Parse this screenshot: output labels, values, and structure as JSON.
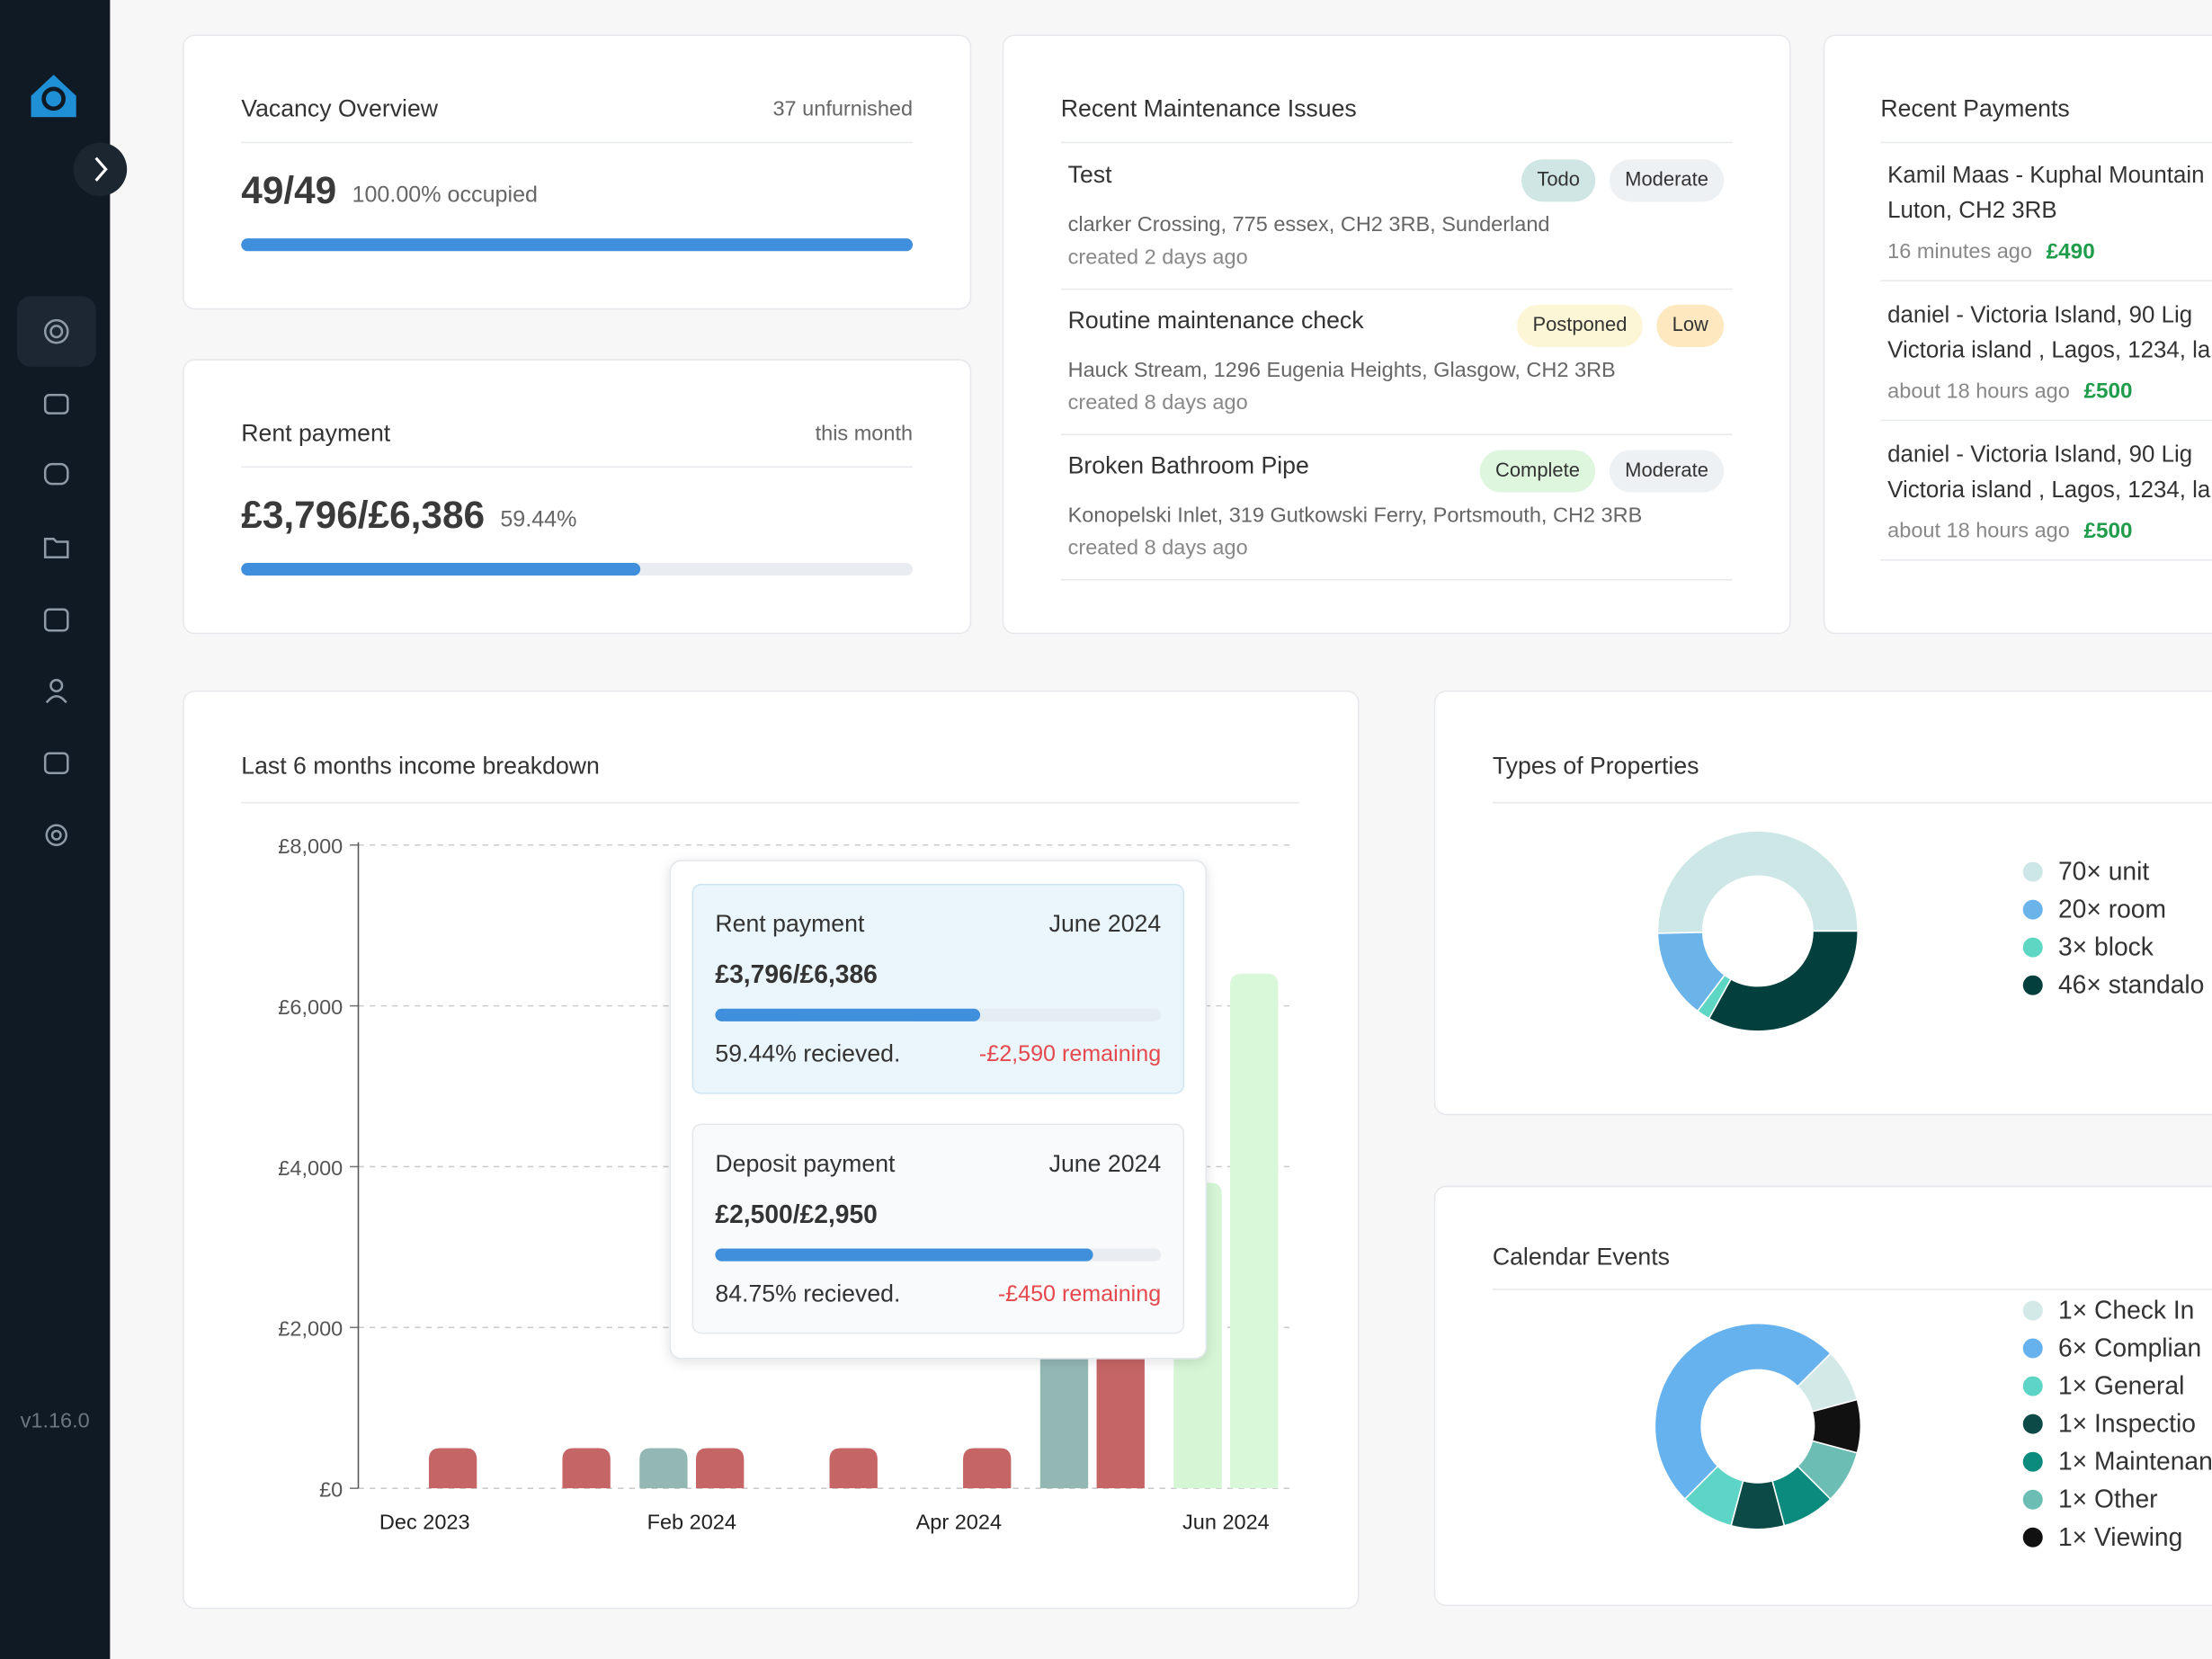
{
  "sidebar": {
    "version": "v1.16.0"
  },
  "vacancy": {
    "title": "Vacancy Overview",
    "note": "37 unfurnished",
    "value": "49/49",
    "progress": 100,
    "progress_label": "100.00% occupied"
  },
  "rent": {
    "title": "Rent payment",
    "note": "this month",
    "value": "£3,796/£6,386",
    "progress": 59.44,
    "progress_label": "59.44%"
  },
  "maintenance": {
    "title": "Recent Maintenance Issues",
    "items": [
      {
        "title": "Test",
        "tags": [
          {
            "text": "Todo",
            "color": "#cfe6e4"
          },
          {
            "text": "Moderate",
            "color": "#eef1f4"
          }
        ],
        "address": "clarker Crossing, 775 essex, CH2 3RB, Sunderland",
        "created": "created 2 days ago"
      },
      {
        "title": "Routine maintenance check",
        "tags": [
          {
            "text": "Postponed",
            "color": "#fcf5d6"
          },
          {
            "text": "Low",
            "color": "#fde8c0"
          }
        ],
        "address": "Hauck Stream, 1296 Eugenia Heights, Glasgow, CH2 3RB",
        "created": "created 8 days ago"
      },
      {
        "title": "Broken Bathroom Pipe",
        "tags": [
          {
            "text": "Complete",
            "color": "#def6de"
          },
          {
            "text": "Moderate",
            "color": "#eef1f4"
          }
        ],
        "address": "Konopelski Inlet, 319 Gutkowski Ferry, Portsmouth, CH2 3RB",
        "created": "created 8 days ago"
      }
    ]
  },
  "payments": {
    "title": "Recent Payments",
    "items": [
      {
        "lines": [
          "Kamil Maas - Kuphal Mountain",
          "Luton, CH2 3RB"
        ],
        "time": "16 minutes ago",
        "amount": "£490"
      },
      {
        "lines": [
          "daniel - Victoria Island, 90 Lig",
          "Victoria island , Lagos, 1234, la"
        ],
        "time": "about 18 hours ago",
        "amount": "£500"
      },
      {
        "lines": [
          "daniel - Victoria Island, 90 Lig",
          "Victoria island , Lagos, 1234, la"
        ],
        "time": "about 18 hours ago",
        "amount": "£500"
      }
    ]
  },
  "tooltip": {
    "panels": [
      {
        "title": "Rent payment",
        "date": "June 2024",
        "value": "£3,796/£6,386",
        "progress": 59.44,
        "progress_label": "59.44% recieved.",
        "remaining": "-£2,590 remaining"
      },
      {
        "title": "Deposit payment",
        "date": "June 2024",
        "value": "£2,500/£2,950",
        "progress": 84.75,
        "progress_label": "84.75% recieved.",
        "remaining": "-£450 remaining"
      }
    ]
  },
  "chart_data": [
    {
      "type": "bar",
      "title": "Last 6 months income breakdown",
      "categories": [
        "Dec 2023",
        null,
        "Feb 2024",
        null,
        "Apr 2024",
        null,
        "Jun 2024"
      ],
      "series": [
        {
          "values": [
            null,
            null,
            500,
            null,
            null,
            2950,
            3800
          ],
          "colors": [
            "#93b8b3",
            "#93b8b3",
            "#93b8b3",
            "#93b8b3",
            "#93b8b3",
            "#93b8b3",
            "#d5f5d5"
          ]
        },
        {
          "values": [
            500,
            500,
            500,
            500,
            500,
            3500,
            6400
          ],
          "colors": [
            "#c56565",
            "#c56565",
            "#c56565",
            "#c56565",
            "#c56565",
            "#c56565",
            "#d9f7d9"
          ]
        }
      ],
      "ylim": [
        0,
        8000
      ],
      "yticks": [
        {
          "value": 0,
          "label": "£0"
        },
        {
          "value": 2000,
          "label": "£2,000"
        },
        {
          "value": 4000,
          "label": "£4,000"
        },
        {
          "value": 6000,
          "label": "£6,000"
        },
        {
          "value": 8000,
          "label": "£8,000"
        }
      ],
      "grid": true
    },
    {
      "type": "donut",
      "title": "Types of Properties",
      "values": [
        70,
        20,
        3,
        46
      ],
      "value_labels": [
        "70× unit",
        "20× room",
        "3× block",
        "46× standalo"
      ],
      "colors": [
        "#cde6e6",
        "#6ab4ea",
        "#5ed6c4",
        "#023f3d"
      ]
    },
    {
      "type": "donut",
      "title": "Calendar Events",
      "values": [
        1,
        6,
        1,
        1,
        1,
        1,
        1
      ],
      "value_labels": [
        "1× Check In",
        "6× Complian",
        "1× General",
        "1× Inspectio",
        "1× Maintenan",
        "1× Other",
        "1× Viewing"
      ],
      "colors": [
        "#d2e9e8",
        "#66b2ee",
        "#5cd5c6",
        "#0c4a47",
        "#0b8a7e",
        "#6cbdb4",
        "#111111"
      ]
    }
  ]
}
